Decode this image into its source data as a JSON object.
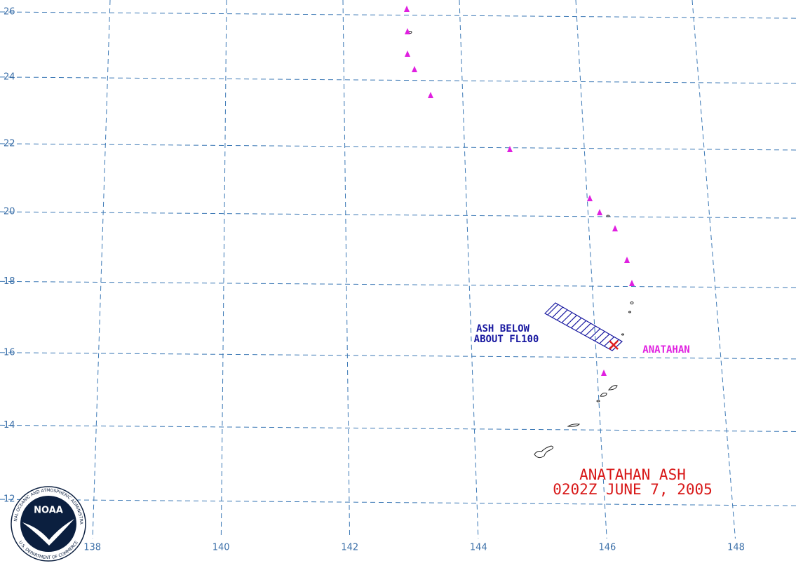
{
  "map": {
    "latitude_labels": [
      26,
      24,
      22,
      20,
      18,
      16,
      14,
      12
    ],
    "longitude_labels": [
      138,
      140,
      142,
      144,
      146,
      148
    ],
    "ash_label": [
      "ASH BELOW",
      "ABOUT FL100"
    ],
    "volcano_label": "ANATAHAN",
    "title": "ANATAHAN ASH",
    "subtitle": "0202Z JUNE 7, 2005",
    "logo": {
      "center": "NOAA",
      "top_ring": "NATIONAL OCEANIC AND ATMOSPHERIC ADMINISTRATION",
      "bottom_ring": "U.S. DEPARTMENT OF COMMERCE"
    }
  }
}
